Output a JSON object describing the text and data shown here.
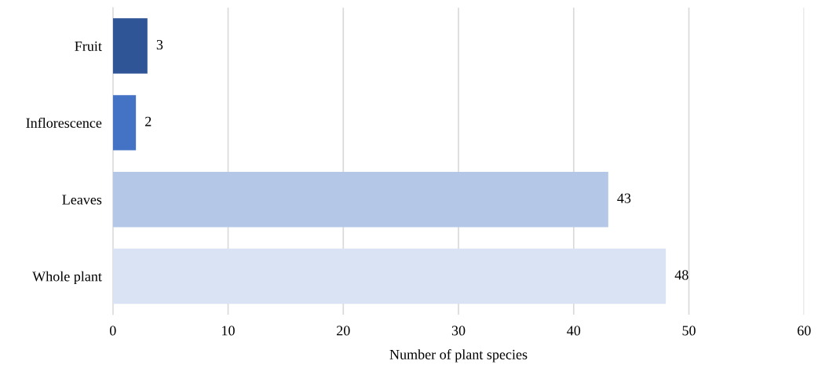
{
  "chart_data": {
    "type": "bar",
    "orientation": "horizontal",
    "xlabel": "Number of plant species",
    "categories": [
      "Fruit",
      "Inflorescence",
      "Leaves",
      "Whole plant"
    ],
    "values": [
      3,
      2,
      43,
      48
    ],
    "colors": [
      "#2f5597",
      "#4472c4",
      "#b4c7e7",
      "#dae3f3"
    ],
    "xlim": [
      0,
      60
    ],
    "xticks": [
      0,
      10,
      20,
      30,
      40,
      50,
      60
    ],
    "grid": "x",
    "data_labels": true
  }
}
